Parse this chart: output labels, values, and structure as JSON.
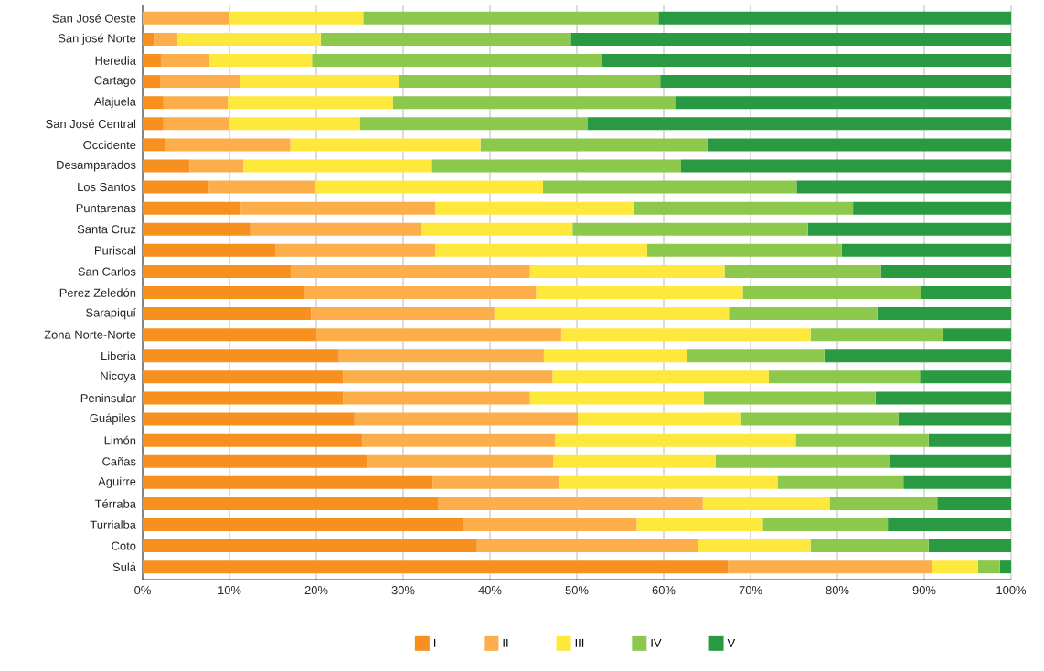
{
  "chart_data": {
    "type": "bar",
    "orientation": "horizontal",
    "stacked": true,
    "categories": [
      "San José Oeste",
      "San josé Norte",
      "Heredia",
      "Cartago",
      "Alajuela",
      "San José Central",
      "Occidente",
      "Desamparados",
      "Los Santos",
      "Puntarenas",
      "Santa Cruz",
      "Puriscal",
      "San Carlos",
      "Perez Zeledón",
      "Sarapiquí",
      "Zona Norte-Norte",
      "Liberia",
      "Nicoya",
      "Peninsular",
      "Guápiles",
      "Limón",
      "Cañas",
      "Aguirre",
      "Térraba",
      "Turrialba",
      "Coto",
      "Sulá"
    ],
    "series": [
      {
        "name": "I",
        "color": "#f7901e",
        "values": [
          0,
          1.4,
          2.1,
          2.0,
          2.4,
          2.4,
          2.7,
          5.4,
          7.6,
          11.3,
          12.5,
          15.3,
          17.1,
          18.6,
          19.4,
          20.0,
          22.6,
          23.1,
          23.1,
          24.4,
          25.3,
          25.8,
          33.4,
          34.0,
          36.9,
          38.5,
          67.4
        ]
      },
      {
        "name": "II",
        "color": "#fbae4a",
        "values": [
          9.9,
          2.6,
          5.6,
          9.2,
          7.4,
          7.5,
          14.3,
          6.2,
          12.3,
          22.4,
          19.5,
          18.4,
          27.5,
          26.7,
          21.1,
          28.2,
          23.6,
          24.1,
          21.5,
          25.7,
          22.2,
          21.5,
          14.5,
          30.5,
          20.0,
          25.5,
          23.5
        ]
      },
      {
        "name": "III",
        "color": "#ffe83c",
        "values": [
          15.5,
          16.5,
          11.8,
          18.3,
          19.0,
          15.1,
          21.9,
          21.7,
          26.2,
          22.8,
          17.5,
          24.4,
          22.4,
          23.8,
          27.0,
          28.7,
          16.5,
          24.9,
          20.0,
          18.8,
          27.7,
          18.7,
          25.2,
          14.6,
          14.5,
          12.9,
          5.3
        ]
      },
      {
        "name": "IV",
        "color": "#8cc84b",
        "values": [
          34.0,
          28.8,
          33.4,
          30.1,
          32.5,
          26.2,
          26.1,
          28.7,
          29.2,
          25.3,
          27.1,
          22.4,
          18.0,
          20.5,
          17.1,
          15.2,
          15.8,
          17.4,
          19.8,
          18.1,
          15.3,
          20.0,
          14.5,
          12.4,
          14.4,
          13.6,
          2.5
        ]
      },
      {
        "name": "V",
        "color": "#2a9a42",
        "values": [
          40.6,
          50.7,
          47.1,
          40.4,
          38.7,
          48.8,
          35.0,
          38.0,
          24.7,
          18.2,
          23.4,
          19.5,
          15.0,
          10.4,
          15.4,
          7.9,
          21.5,
          10.5,
          15.6,
          13.0,
          9.5,
          14.0,
          12.4,
          8.5,
          14.2,
          9.5,
          1.3
        ]
      }
    ],
    "xlim": [
      0,
      100
    ],
    "xticks": [
      {
        "value": 0,
        "label": "0%"
      },
      {
        "value": 10,
        "label": "10%"
      },
      {
        "value": 20,
        "label": "20%"
      },
      {
        "value": 30,
        "label": "30%"
      },
      {
        "value": 40,
        "label": "40%"
      },
      {
        "value": 50,
        "label": "50%"
      },
      {
        "value": 60,
        "label": "60%"
      },
      {
        "value": 70,
        "label": "70%"
      },
      {
        "value": 80,
        "label": "80%"
      },
      {
        "value": 90,
        "label": "90%"
      },
      {
        "value": 100,
        "label": "100%"
      }
    ],
    "grid": "x",
    "legend": "bottom"
  }
}
